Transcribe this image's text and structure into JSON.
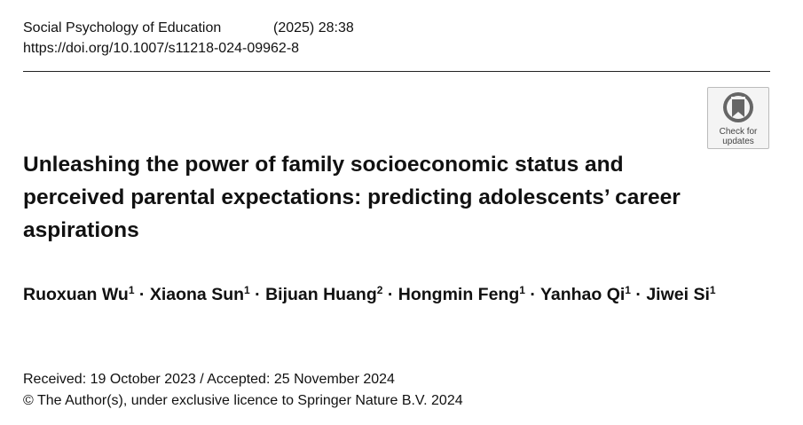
{
  "header": {
    "journal": "Social Psychology of Education",
    "citation": "(2025) 28:38",
    "doi": "https://doi.org/10.1007/s11218-024-09962-8"
  },
  "badge": {
    "lines": [
      "Check for",
      "updates"
    ]
  },
  "title": "Unleashing the power of family socioeconomic status and perceived parental expectations: predicting adolescents’ career aspirations",
  "authors": {
    "separator": "·",
    "list": [
      {
        "name": "Ruoxuan Wu",
        "affiliation": "1"
      },
      {
        "name": "Xiaona Sun",
        "affiliation": "1"
      },
      {
        "name": "Bijuan Huang",
        "affiliation": "2"
      },
      {
        "name": "Hongmin Feng",
        "affiliation": "1"
      },
      {
        "name": "Yanhao Qi",
        "affiliation": "1"
      },
      {
        "name": "Jiwei Si",
        "affiliation": "1"
      }
    ]
  },
  "dates": "Received: 19 October 2023 / Accepted: 25 November 2024",
  "copyright": "© The Author(s), under exclusive licence to Springer Nature B.V. 2024"
}
